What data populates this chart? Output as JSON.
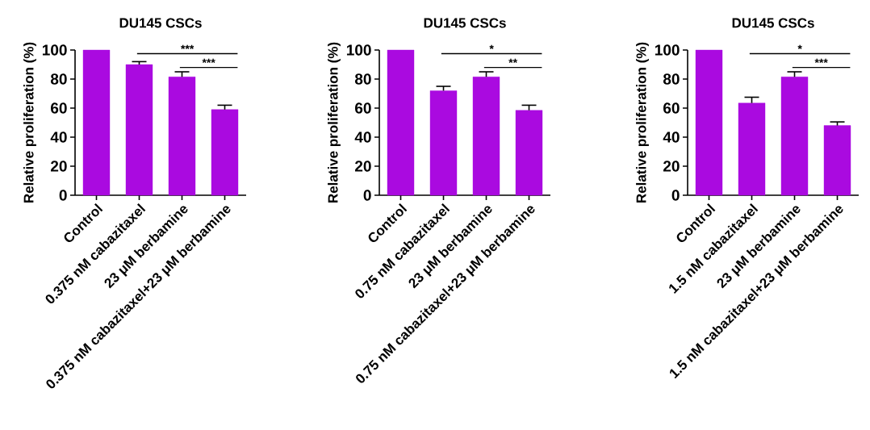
{
  "chart_data": [
    {
      "type": "bar",
      "title": "DU145 CSCs",
      "ylabel": "Relative proliferation (%)",
      "categories": [
        "Control",
        "0.375 nM cabazitaxel",
        "23 μM berbamine",
        "0.375 nM cabazitaxel+23 μM berbamine"
      ],
      "values": [
        100,
        90,
        81.5,
        59
      ],
      "errors": [
        null,
        2,
        3.5,
        3
      ],
      "color": "#aa0ae0",
      "ylim": [
        0,
        100
      ],
      "yticks": [
        0,
        20,
        40,
        60,
        80,
        100
      ],
      "annotations": [
        "***",
        "***"
      ]
    },
    {
      "type": "bar",
      "title": "DU145 CSCs",
      "ylabel": "Relative proliferation (%)",
      "categories": [
        "Control",
        "0.75 nM cabazitaxel",
        "23 μM berbamine",
        "0.75 nM cabazitaxel+23 μM berbamine"
      ],
      "values": [
        100,
        72,
        81.5,
        58.5
      ],
      "errors": [
        null,
        3,
        3.5,
        3.5
      ],
      "color": "#aa0ae0",
      "ylim": [
        0,
        100
      ],
      "yticks": [
        0,
        20,
        40,
        60,
        80,
        100
      ],
      "annotations": [
        "*",
        "**"
      ]
    },
    {
      "type": "bar",
      "title": "DU145 CSCs",
      "ylabel": "Relative proliferation (%)",
      "categories": [
        "Control",
        "1.5 nM cabazitaxel",
        "23 μM berbamine",
        "1.5 nM cabazitaxel+23 μM berbamine"
      ],
      "values": [
        100,
        63.5,
        81.5,
        48
      ],
      "errors": [
        null,
        4,
        3.5,
        2.5
      ],
      "color": "#aa0ae0",
      "ylim": [
        0,
        100
      ],
      "yticks": [
        0,
        20,
        40,
        60,
        80,
        100
      ],
      "annotations": [
        "*",
        "***"
      ]
    }
  ]
}
